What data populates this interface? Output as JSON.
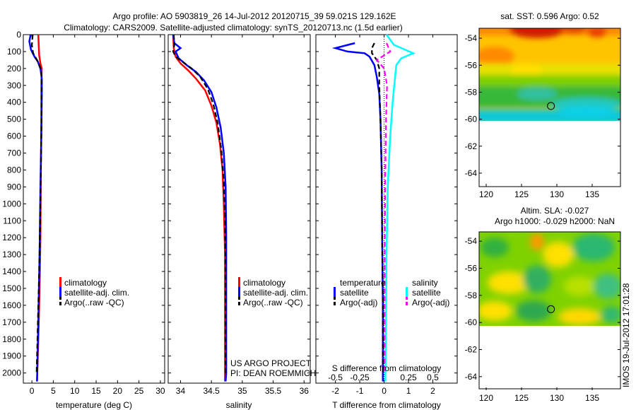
{
  "header": {
    "title_line1": "Argo profile: AO 5903819_26 14-Jul-2012 20120715_39 59.021S 129.162E",
    "title_line2": "Climatology: CARS2009. Satellite-adjusted climatology: synTS_20120713.nc (1.5d earlier)"
  },
  "colors": {
    "climatology": "#ff0000",
    "satellite": "#0000ff",
    "argo": "#000000",
    "salinity_satellite": "#00ffff",
    "salinity_argo": "#ff00ff"
  },
  "chart_data": [
    {
      "type": "line",
      "id": "temperature",
      "xlabel": "temperature (deg C)",
      "xlim": [
        -2,
        31
      ],
      "xticks": [
        "0",
        "5",
        "10",
        "15",
        "20",
        "25",
        "30"
      ],
      "ylim": [
        2060,
        0
      ],
      "yticks": [
        "0",
        "100",
        "200",
        "300",
        "400",
        "500",
        "600",
        "700",
        "800",
        "900",
        "1000",
        "1100",
        "1200",
        "1300",
        "1400",
        "1500",
        "1600",
        "1700",
        "1800",
        "1900",
        "2000"
      ],
      "legend": [
        "climatology",
        "satellite-adj. clim.",
        "Argo(..raw -QC)"
      ],
      "series": [
        {
          "name": "climatology",
          "color": "#ff0000",
          "points": [
            [
              1.5,
              0
            ],
            [
              1.6,
              60
            ],
            [
              1.7,
              120
            ],
            [
              2.0,
              170
            ],
            [
              2.3,
              200
            ],
            [
              2.2,
              300
            ],
            [
              2.2,
              500
            ],
            [
              2.1,
              800
            ],
            [
              2.0,
              1200
            ],
            [
              1.8,
              1500
            ],
            [
              1.5,
              1800
            ],
            [
              1.2,
              2050
            ]
          ]
        },
        {
          "name": "satellite-adj. clim.",
          "color": "#0000ff",
          "points": [
            [
              -0.3,
              0
            ],
            [
              -0.6,
              40
            ],
            [
              -0.2,
              90
            ],
            [
              0.6,
              130
            ],
            [
              1.4,
              160
            ],
            [
              2.0,
              200
            ],
            [
              2.3,
              260
            ],
            [
              2.3,
              350
            ],
            [
              2.2,
              600
            ],
            [
              2.0,
              900
            ],
            [
              1.8,
              1300
            ],
            [
              1.5,
              1700
            ],
            [
              1.2,
              2050
            ]
          ]
        },
        {
          "name": "Argo(..raw -QC)",
          "color": "#000000",
          "points": [
            [
              0.2,
              0
            ],
            [
              0.0,
              60
            ],
            [
              0.3,
              110
            ],
            [
              1.2,
              150
            ],
            [
              1.9,
              190
            ],
            [
              2.2,
              230
            ],
            [
              2.3,
              300
            ],
            [
              2.2,
              600
            ],
            [
              2.0,
              1000
            ],
            [
              1.7,
              1400
            ],
            [
              1.3,
              1800
            ],
            [
              1.1,
              2000
            ]
          ]
        }
      ]
    },
    {
      "type": "line",
      "id": "salinity",
      "xlabel": "salinity",
      "xlim": [
        33.8,
        36.1
      ],
      "xticks": [
        "34",
        "34.5",
        "35",
        "35.5",
        "36"
      ],
      "ylim": [
        2060,
        0
      ],
      "legend": [
        "climatology",
        "satellite-adj. clim.",
        "Argo(..raw -QC)"
      ],
      "annotation": [
        "US ARGO PROJECT",
        "PI: DEAN ROEMMICH"
      ],
      "series": [
        {
          "name": "climatology",
          "color": "#ff0000",
          "points": [
            [
              33.88,
              0
            ],
            [
              33.89,
              80
            ],
            [
              33.92,
              130
            ],
            [
              34.0,
              170
            ],
            [
              34.12,
              210
            ],
            [
              34.25,
              260
            ],
            [
              34.4,
              330
            ],
            [
              34.5,
              420
            ],
            [
              34.58,
              520
            ],
            [
              34.64,
              650
            ],
            [
              34.68,
              800
            ],
            [
              34.7,
              1000
            ],
            [
              34.72,
              1300
            ],
            [
              34.72,
              1600
            ],
            [
              34.72,
              2050
            ]
          ]
        },
        {
          "name": "satellite-adj. clim.",
          "color": "#0000ff",
          "points": [
            [
              33.88,
              0
            ],
            [
              33.9,
              50
            ],
            [
              34.0,
              80
            ],
            [
              33.92,
              100
            ],
            [
              33.97,
              140
            ],
            [
              34.1,
              180
            ],
            [
              34.25,
              220
            ],
            [
              34.38,
              270
            ],
            [
              34.5,
              340
            ],
            [
              34.58,
              430
            ],
            [
              34.65,
              550
            ],
            [
              34.7,
              700
            ],
            [
              34.73,
              900
            ],
            [
              34.74,
              1200
            ],
            [
              34.74,
              1600
            ],
            [
              34.74,
              2000
            ],
            [
              34.73,
              2050
            ]
          ]
        },
        {
          "name": "Argo(..raw -QC)",
          "color": "#000000",
          "points": [
            [
              33.89,
              0
            ],
            [
              33.9,
              60
            ],
            [
              33.88,
              100
            ],
            [
              33.92,
              130
            ],
            [
              34.03,
              160
            ],
            [
              34.18,
              200
            ],
            [
              34.32,
              250
            ],
            [
              34.44,
              320
            ],
            [
              34.53,
              410
            ],
            [
              34.6,
              520
            ],
            [
              34.66,
              680
            ],
            [
              34.7,
              870
            ],
            [
              34.72,
              1100
            ],
            [
              34.73,
              1400
            ],
            [
              34.73,
              1800
            ],
            [
              34.73,
              2000
            ]
          ]
        }
      ]
    },
    {
      "type": "line",
      "id": "difference",
      "xlabel": "T difference from climatology",
      "xlabel_top": "S difference from climatology",
      "xlim": [
        -2.8,
        3.0
      ],
      "xticks": [
        "-2",
        "-1",
        "0",
        "1",
        "2"
      ],
      "xticks_top": [
        "-0.5",
        "-0.25",
        "0",
        "0.25",
        "0.5"
      ],
      "ylim": [
        2060,
        0
      ],
      "legend_temperature": {
        "title": "temperature",
        "items": [
          "satellite",
          "Argo(-adj)"
        ]
      },
      "legend_salinity": {
        "title": "salinity",
        "items": [
          "satellite",
          "Argo(-adj)"
        ]
      },
      "series": [
        {
          "name": "temperature satellite",
          "color": "#0000ff",
          "points": [
            [
              -1.2,
              50
            ],
            [
              -2.0,
              80
            ],
            [
              -1.5,
              100
            ],
            [
              -0.8,
              110
            ],
            [
              -0.6,
              130
            ],
            [
              -0.4,
              180
            ],
            [
              -0.3,
              250
            ],
            [
              -0.2,
              350
            ],
            [
              -0.15,
              500
            ],
            [
              -0.1,
              800
            ],
            [
              -0.08,
              1200
            ],
            [
              -0.05,
              1600
            ],
            [
              -0.05,
              2050
            ]
          ]
        },
        {
          "name": "temperature Argo(-adj)",
          "color": "#000000",
          "points": [
            [
              -0.4,
              50
            ],
            [
              -0.5,
              80
            ],
            [
              -0.5,
              110
            ],
            [
              -0.3,
              150
            ],
            [
              -0.2,
              200
            ],
            [
              -0.2,
              300
            ],
            [
              -0.15,
              500
            ],
            [
              -0.1,
              800
            ],
            [
              -0.08,
              1200
            ],
            [
              -0.05,
              1600
            ],
            [
              -0.05,
              2000
            ]
          ]
        },
        {
          "name": "salinity satellite",
          "color": "#00ffff",
          "points": [
            [
              0.1,
              0
            ],
            [
              0.4,
              60
            ],
            [
              1.2,
              110
            ],
            [
              0.7,
              140
            ],
            [
              0.5,
              180
            ],
            [
              0.45,
              250
            ],
            [
              0.35,
              400
            ],
            [
              0.25,
              600
            ],
            [
              0.15,
              900
            ],
            [
              0.1,
              1300
            ],
            [
              0.08,
              1700
            ],
            [
              0.05,
              2050
            ]
          ]
        },
        {
          "name": "salinity Argo(-adj)",
          "color": "#ff00ff",
          "points": [
            [
              0.1,
              50
            ],
            [
              0.25,
              100
            ],
            [
              -0.3,
              150
            ],
            [
              0.0,
              200
            ],
            [
              0.12,
              300
            ],
            [
              0.08,
              500
            ],
            [
              0.05,
              800
            ],
            [
              0.03,
              1200
            ],
            [
              0.02,
              1600
            ],
            [
              0.02,
              2000
            ]
          ]
        }
      ]
    },
    {
      "type": "heatmap",
      "id": "sst_map",
      "title": "sat. SST: 0.596 Argo: 0.52",
      "xlim": [
        119,
        139
      ],
      "ylim": [
        -65,
        -53
      ],
      "xticks": [
        "120",
        "125",
        "130",
        "135"
      ],
      "yticks": [
        "-54",
        "-56",
        "-58",
        "-60",
        "-62",
        "-64"
      ],
      "data_extent_lat": [
        -60,
        -53
      ],
      "marker": {
        "lon": 129.162,
        "lat": -59.021
      }
    },
    {
      "type": "heatmap",
      "id": "sla_map",
      "title_line1": "Altim. SLA: -0.027",
      "title_line2": "Argo h1000: -0.029 h2000: NaN",
      "xlim": [
        119,
        139
      ],
      "ylim": [
        -65,
        -53
      ],
      "xticks": [
        "120",
        "125",
        "130",
        "135"
      ],
      "yticks": [
        "-54",
        "-56",
        "-58",
        "-60",
        "-62",
        "-64"
      ],
      "data_extent_lat": [
        -60,
        -53
      ],
      "marker": {
        "lon": 129.162,
        "lat": -59.021
      }
    }
  ],
  "footer": {
    "stamp": "IMOS 19-Jul-2012 17:01:28"
  }
}
